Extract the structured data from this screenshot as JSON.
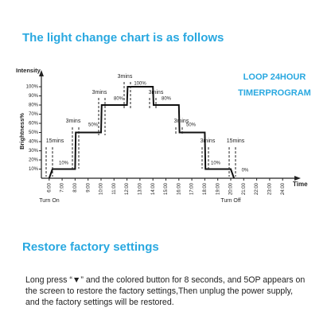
{
  "heading": "The light change chart is as follows",
  "chart_data": {
    "type": "line",
    "y_axis_title": "Intensity",
    "y_label": "Brightness%",
    "x_label": "Time",
    "x": [
      6,
      6.25,
      8,
      8.05,
      10,
      10.05,
      12,
      12.05,
      14,
      14.05,
      16,
      16.05,
      18,
      18.05,
      20,
      20.25
    ],
    "values": [
      0,
      10,
      10,
      50,
      50,
      80,
      80,
      100,
      100,
      80,
      80,
      50,
      50,
      10,
      10,
      0
    ],
    "color": "#111111",
    "xlim": [
      5.4,
      25
    ],
    "ylim": [
      0,
      100
    ],
    "xticks": [
      {
        "value": 6,
        "label": "6:00"
      },
      {
        "value": 7,
        "label": "7:00"
      },
      {
        "value": 8,
        "label": "8:00"
      },
      {
        "value": 9,
        "label": "9:00"
      },
      {
        "value": 10,
        "label": "10:00"
      },
      {
        "value": 11,
        "label": "11:00"
      },
      {
        "value": 12,
        "label": "12:00"
      },
      {
        "value": 13,
        "label": "13:00"
      },
      {
        "value": 14,
        "label": "14:00"
      },
      {
        "value": 15,
        "label": "15:00"
      },
      {
        "value": 16,
        "label": "16:00"
      },
      {
        "value": 17,
        "label": "17:00"
      },
      {
        "value": 18,
        "label": "18:00"
      },
      {
        "value": 19,
        "label": "19:00"
      },
      {
        "value": 20,
        "label": "20:00"
      },
      {
        "value": 21,
        "label": "21:00"
      },
      {
        "value": 22,
        "label": "22:00"
      },
      {
        "value": 23,
        "label": "23:00"
      },
      {
        "value": 24,
        "label": "24:00"
      }
    ],
    "yticks": [
      {
        "value": 10,
        "label": "10%"
      },
      {
        "value": 20,
        "label": "20%"
      },
      {
        "value": 30,
        "label": "30%"
      },
      {
        "value": 40,
        "label": "40%"
      },
      {
        "value": 50,
        "label": "50%"
      },
      {
        "value": 60,
        "label": "60%"
      },
      {
        "value": 70,
        "label": "70%"
      },
      {
        "value": 80,
        "label": "80%"
      },
      {
        "value": 90,
        "label": "90%"
      },
      {
        "value": 100,
        "label": "100%"
      }
    ],
    "annotations": [
      "15mins",
      "3mins",
      "10%",
      "50%",
      "3mins",
      "80%",
      "3mins",
      "100%",
      "3mins",
      "80%",
      "3mins",
      "50%",
      "3mins",
      "10%",
      "15mins",
      "0%",
      "Turn On",
      "Turn Off",
      "LOOP 24HOUR",
      "TIMERPROGRAM"
    ]
  },
  "restore_title": "Restore factory settings",
  "paragraph": [
    "Long press “▼” and the colored button for 8 seconds, and 5OP appears on",
    "the screen to restore the factory settings,Then unplug the power supply,",
    "and the factory settings will be restored."
  ]
}
